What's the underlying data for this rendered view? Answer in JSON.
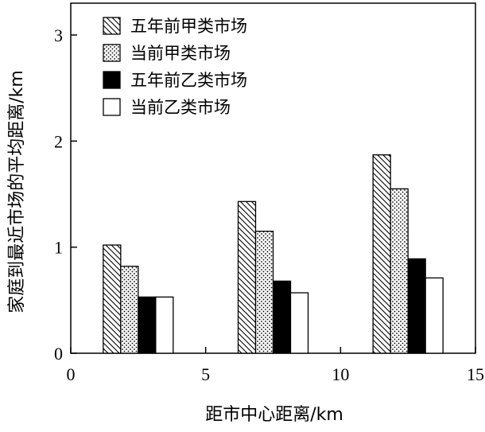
{
  "chart_data": {
    "type": "bar",
    "title": "",
    "xlabel": "距市中心距离/km",
    "ylabel": "家庭到最近市场的平均距离/km",
    "xlim": [
      0,
      15
    ],
    "ylim": [
      0,
      3.3
    ],
    "xticks": [
      "0",
      "5",
      "10",
      "15"
    ],
    "yticks": [
      "0",
      "1",
      "2",
      "3"
    ],
    "x": [
      2.5,
      7.5,
      12.5
    ],
    "legend_position": "top-left",
    "series": [
      {
        "name": "五年前甲类市场",
        "pattern": "hatch",
        "values": [
          1.02,
          1.43,
          1.87
        ]
      },
      {
        "name": "当前甲类市场",
        "pattern": "dots",
        "values": [
          0.82,
          1.15,
          1.55
        ]
      },
      {
        "name": "五年前乙类市场",
        "pattern": "solid-black",
        "values": [
          0.53,
          0.68,
          0.89
        ]
      },
      {
        "name": "当前乙类市场",
        "pattern": "white",
        "values": [
          0.53,
          0.57,
          0.71
        ]
      }
    ]
  }
}
